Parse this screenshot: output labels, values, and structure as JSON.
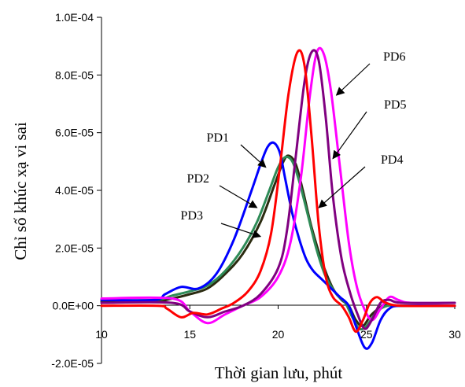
{
  "chart_data": {
    "type": "line",
    "xlabel": "Thời gian lưu, phút",
    "ylabel": "Chỉ số khúc xạ vi sai",
    "xlim": [
      10,
      30
    ],
    "ylim": [
      -2e-05,
      0.0001
    ],
    "x_ticks": [
      {
        "value": 10,
        "label": "10"
      },
      {
        "value": 15,
        "label": "15"
      },
      {
        "value": 20,
        "label": "20"
      },
      {
        "value": 25,
        "label": "25"
      },
      {
        "value": 30,
        "label": "30"
      }
    ],
    "y_ticks": [
      {
        "value": -2e-05,
        "label": "-2.0E-05"
      },
      {
        "value": 0,
        "label": "0.0E+00"
      },
      {
        "value": 2e-05,
        "label": "2.0E-05"
      },
      {
        "value": 4e-05,
        "label": "4.0E-05"
      },
      {
        "value": 6e-05,
        "label": "6.0E-05"
      },
      {
        "value": 8e-05,
        "label": "8.0E-05"
      },
      {
        "value": 0.0001,
        "label": "1.0E-04"
      }
    ],
    "grid": false,
    "series": [
      {
        "name": "PD1",
        "color": "#0000ff",
        "x": [
          10,
          13,
          13.6,
          14.5,
          15.5,
          16.5,
          17.5,
          18.5,
          19,
          19.4,
          19.75,
          20.1,
          20.4,
          20.8,
          21.2,
          21.6,
          22,
          22.5,
          23,
          23.5,
          24,
          24.4,
          24.9,
          25.3,
          25.8,
          26.3,
          27,
          30
        ],
        "y": [
          2e-06,
          2e-06,
          4e-06,
          6.5e-06,
          6e-06,
          1.1e-05,
          2.3e-05,
          4e-05,
          4.9e-05,
          5.5e-05,
          5.65e-05,
          5.3e-05,
          4.4e-05,
          3.2e-05,
          2.3e-05,
          1.6e-05,
          1.2e-05,
          9e-06,
          6e-06,
          3e-06,
          0,
          -7e-06,
          -1.45e-05,
          -1.3e-05,
          -5e-06,
          -1e-06,
          0,
          0
        ]
      },
      {
        "name": "PD2",
        "color": "#2e8b57",
        "x": [
          10,
          13,
          14,
          15,
          16,
          17,
          18,
          18.8,
          19.5,
          20,
          20.4,
          20.8,
          21.2,
          21.7,
          22.2,
          22.7,
          23.3,
          23.8,
          24.2,
          24.6,
          25,
          25.6,
          26.2,
          27,
          30
        ],
        "y": [
          2e-06,
          2e-06,
          3.5e-06,
          5e-06,
          7e-06,
          1.2e-05,
          2e-05,
          2.9e-05,
          4e-05,
          4.8e-05,
          5.15e-05,
          5e-05,
          4.3e-05,
          3.1e-05,
          1.9e-05,
          1e-05,
          4e-06,
          1e-06,
          -4e-06,
          -8e-06,
          -7e-06,
          -2e-06,
          0,
          0,
          0
        ]
      },
      {
        "name": "PD3",
        "color": "#2b2b10",
        "x": [
          10,
          13,
          14,
          15,
          16,
          17,
          18,
          19,
          19.8,
          20.3,
          20.6,
          21,
          21.4,
          21.9,
          22.5,
          23.1,
          23.6,
          24,
          24.4,
          24.8,
          25.3,
          26,
          27,
          30
        ],
        "y": [
          1.5e-06,
          1.5e-06,
          2.5e-06,
          4e-06,
          6e-06,
          1.1e-05,
          1.8e-05,
          2.9e-05,
          4.2e-05,
          5e-05,
          5.2e-05,
          4.9e-05,
          4e-05,
          2.7e-05,
          1.5e-05,
          6e-06,
          2e-06,
          0,
          -5e-06,
          -7e-06,
          -3e-06,
          0,
          0,
          0
        ]
      },
      {
        "name": "PD4",
        "color": "#ff0000",
        "x": [
          10,
          13.2,
          13.7,
          14.5,
          15.2,
          16,
          16.8,
          17.5,
          18.3,
          19,
          19.6,
          20.1,
          20.6,
          21.1,
          21.5,
          21.9,
          22.3,
          22.7,
          23.1,
          23.6,
          24,
          24.4,
          24.8,
          25.2,
          25.6,
          26.1,
          27,
          30
        ],
        "y": [
          0,
          0,
          -1e-06,
          -4e-06,
          -2.5e-06,
          -3e-06,
          -1e-06,
          1e-06,
          5e-06,
          1.2e-05,
          2.5e-05,
          4.8e-05,
          7.4e-05,
          8.8e-05,
          8.3e-05,
          5.8e-05,
          2.8e-05,
          1e-05,
          3e-06,
          0,
          -4e-06,
          -9e-06,
          -5e-06,
          1e-06,
          3e-06,
          1e-06,
          0,
          0
        ]
      },
      {
        "name": "PD5",
        "color": "#800080",
        "x": [
          10,
          14,
          15,
          16,
          17,
          18,
          19,
          20,
          20.5,
          21,
          21.5,
          21.9,
          22.3,
          22.7,
          23.1,
          23.6,
          24.1,
          24.5,
          24.9,
          25.3,
          25.8,
          26.3,
          27,
          30
        ],
        "y": [
          1e-06,
          1e-06,
          -2e-06,
          -4e-06,
          -2e-06,
          0,
          4e-06,
          1.3e-05,
          2.6e-05,
          5.2e-05,
          7.8e-05,
          8.8e-05,
          8.5e-05,
          6.5e-05,
          3.8e-05,
          1.6e-05,
          4e-06,
          -3e-06,
          -8e-06,
          -5e-06,
          1e-06,
          2e-06,
          1e-06,
          1e-06
        ]
      },
      {
        "name": "PD6",
        "color": "#ff00ff",
        "x": [
          10,
          14,
          15,
          16,
          17,
          18,
          19,
          20,
          20.7,
          21.3,
          21.8,
          22.2,
          22.6,
          23,
          23.5,
          24,
          24.4,
          24.8,
          25.3,
          25.8,
          26.3,
          26.8,
          27.5,
          30
        ],
        "y": [
          2.5e-06,
          2.5e-06,
          -2e-06,
          -6e-06,
          -3e-06,
          0,
          3e-06,
          1e-05,
          2.2e-05,
          4.5e-05,
          7.3e-05,
          8.8e-05,
          8.7e-05,
          7.4e-05,
          4.8e-05,
          2.2e-05,
          8e-06,
          0,
          -5e-06,
          -1e-06,
          3e-06,
          2e-06,
          1e-06,
          1e-06
        ]
      }
    ],
    "annotations": [
      {
        "text": "PD1",
        "series": "PD1",
        "x": 19.3,
        "y": 4.8e-05
      },
      {
        "text": "PD2",
        "series": "PD2",
        "x": 18.8,
        "y": 3.4e-05
      },
      {
        "text": "PD3",
        "series": "PD3",
        "x": 19.0,
        "y": 2.4e-05
      },
      {
        "text": "PD4",
        "series": "PD4",
        "x": 22.3,
        "y": 3.4e-05
      },
      {
        "text": "PD5",
        "series": "PD5",
        "x": 23.1,
        "y": 5.1e-05
      },
      {
        "text": "PD6",
        "series": "PD6",
        "x": 23.3,
        "y": 7.3e-05
      }
    ]
  }
}
